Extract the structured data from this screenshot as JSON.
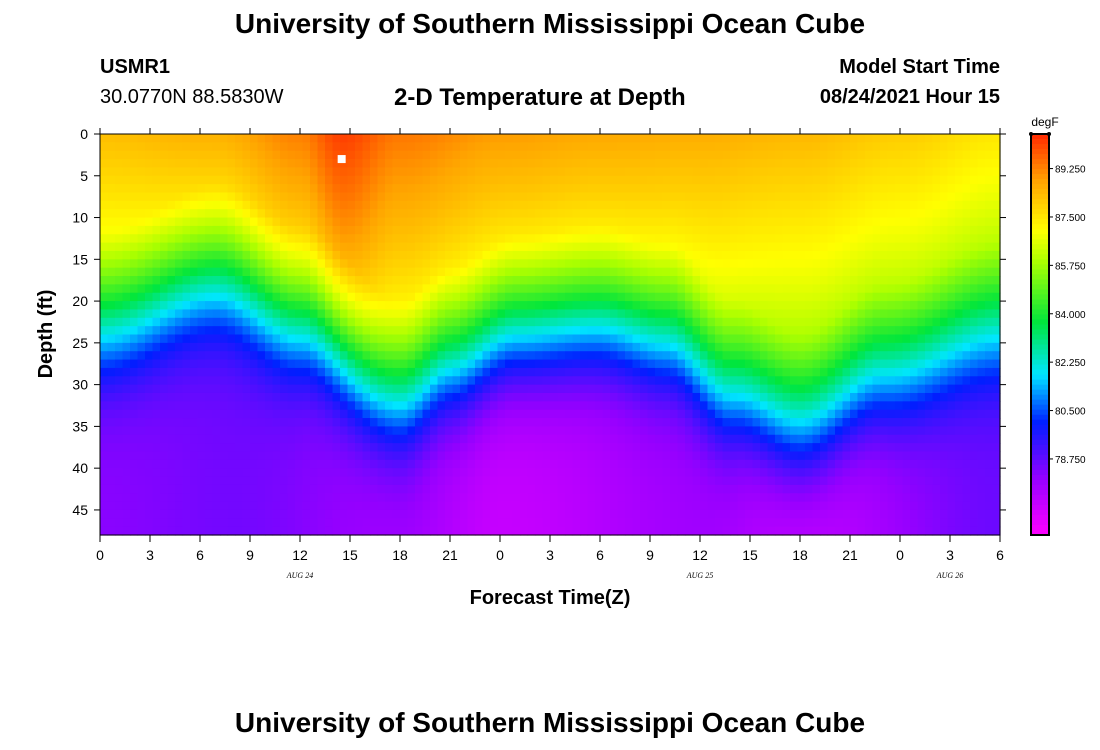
{
  "header": {
    "top_title": "University of Southern Mississippi Ocean Cube",
    "bottom_title": "University of Southern Mississippi Ocean Cube",
    "station_id": "USMR1",
    "station_coords": "30.0770N  88.5830W",
    "plot_title": "2-D Temperature at Depth",
    "model_label": "Model Start Time",
    "model_time": "08/24/2021 Hour 15"
  },
  "chart_data": {
    "type": "heatmap",
    "title": "2-D Temperature at Depth",
    "xlabel": "Forecast Time(Z)",
    "ylabel": "Depth (ft)",
    "units": "degF",
    "x_range_hours": [
      0,
      54
    ],
    "x_ticks": [
      {
        "h": 0,
        "label": "0"
      },
      {
        "h": 3,
        "label": "3"
      },
      {
        "h": 6,
        "label": "6"
      },
      {
        "h": 9,
        "label": "9"
      },
      {
        "h": 12,
        "label": "12"
      },
      {
        "h": 15,
        "label": "15"
      },
      {
        "h": 18,
        "label": "18"
      },
      {
        "h": 21,
        "label": "21"
      },
      {
        "h": 24,
        "label": "0"
      },
      {
        "h": 27,
        "label": "3"
      },
      {
        "h": 30,
        "label": "6"
      },
      {
        "h": 33,
        "label": "9"
      },
      {
        "h": 36,
        "label": "12"
      },
      {
        "h": 39,
        "label": "15"
      },
      {
        "h": 42,
        "label": "18"
      },
      {
        "h": 45,
        "label": "21"
      },
      {
        "h": 48,
        "label": "0"
      },
      {
        "h": 51,
        "label": "3"
      },
      {
        "h": 54,
        "label": "6"
      }
    ],
    "date_labels": [
      {
        "h": 12,
        "label": "AUG 24"
      },
      {
        "h": 36,
        "label": "AUG 25"
      },
      {
        "h": 51,
        "label": "AUG 26"
      }
    ],
    "y_range_ft": [
      0,
      48
    ],
    "y_ticks": [
      0,
      5,
      10,
      15,
      20,
      25,
      30,
      35,
      40,
      45
    ],
    "colorbar": {
      "min": 76.0,
      "max": 90.5,
      "ticks": [
        "89.250",
        "87.500",
        "85.750",
        "84.000",
        "82.250",
        "80.500",
        "78.750"
      ]
    },
    "marker": {
      "h": 14.5,
      "depth_ft": 3
    },
    "thermocline_depth_ft": [
      {
        "h": 0,
        "d": 20
      },
      {
        "h": 7,
        "d": 14
      },
      {
        "h": 12,
        "d": 19
      },
      {
        "h": 18,
        "d": 28
      },
      {
        "h": 21,
        "d": 24
      },
      {
        "h": 25,
        "d": 20
      },
      {
        "h": 30,
        "d": 19
      },
      {
        "h": 34,
        "d": 21
      },
      {
        "h": 38,
        "d": 28
      },
      {
        "h": 42,
        "d": 32
      },
      {
        "h": 47,
        "d": 26
      },
      {
        "h": 54,
        "d": 21
      }
    ],
    "surface_temp_degF": [
      {
        "h": 0,
        "t": 88.3
      },
      {
        "h": 7,
        "t": 88.6
      },
      {
        "h": 12,
        "t": 89.3
      },
      {
        "h": 14.5,
        "t": 90.2
      },
      {
        "h": 18,
        "t": 89.4
      },
      {
        "h": 24,
        "t": 88.9
      },
      {
        "h": 30,
        "t": 88.7
      },
      {
        "h": 36,
        "t": 88.6
      },
      {
        "h": 42,
        "t": 88.4
      },
      {
        "h": 48,
        "t": 88.0
      },
      {
        "h": 54,
        "t": 87.5
      }
    ],
    "deep_temp_degF": [
      {
        "h": 0,
        "t": 78.2
      },
      {
        "h": 8,
        "t": 78.5
      },
      {
        "h": 18,
        "t": 77.8
      },
      {
        "h": 24,
        "t": 77.1
      },
      {
        "h": 36,
        "t": 77.8
      },
      {
        "h": 42,
        "t": 77.2
      },
      {
        "h": 54,
        "t": 78.6
      }
    ]
  }
}
